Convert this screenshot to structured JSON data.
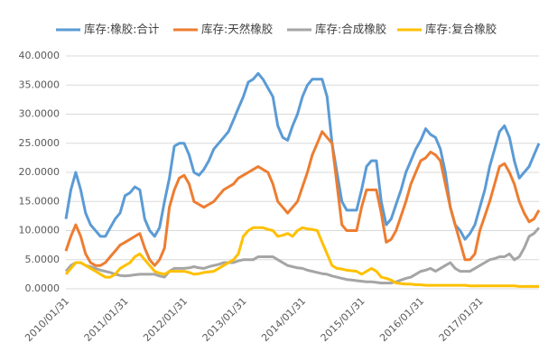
{
  "chart_data": {
    "type": "line",
    "categories": [
      "2010/01/31",
      null,
      null,
      null,
      null,
      null,
      null,
      null,
      null,
      null,
      null,
      null,
      "2011/01/31",
      null,
      null,
      null,
      null,
      null,
      null,
      null,
      null,
      null,
      null,
      null,
      "2012/01/31",
      null,
      null,
      null,
      null,
      null,
      null,
      null,
      null,
      null,
      null,
      null,
      "2013/01/31",
      null,
      null,
      null,
      null,
      null,
      null,
      null,
      null,
      null,
      null,
      null,
      "2014/01/31",
      null,
      null,
      null,
      null,
      null,
      null,
      null,
      null,
      null,
      null,
      null,
      "2015/01/31",
      null,
      null,
      null,
      null,
      null,
      null,
      null,
      null,
      null,
      null,
      null,
      "2016/01/31",
      null,
      null,
      null,
      null,
      null,
      null,
      null,
      null,
      null,
      null,
      null,
      "2017/01/31",
      null,
      null,
      null,
      null,
      null,
      null,
      null,
      null,
      null,
      null,
      null,
      null
    ],
    "series": [
      {
        "name": "库存:橡胶:合计",
        "color": "#5b9bd5",
        "values": [
          12,
          17,
          20,
          17,
          13,
          11,
          10,
          9,
          9,
          10.5,
          12,
          13,
          16,
          16.5,
          17.5,
          17,
          12,
          10,
          9,
          10.5,
          15,
          19,
          24.5,
          25,
          25,
          23,
          20,
          19.5,
          20.5,
          22,
          24,
          25,
          26,
          27,
          29,
          31,
          33,
          35.5,
          36,
          37,
          36,
          34.5,
          33,
          28,
          26,
          25.5,
          28,
          30,
          33,
          35,
          36,
          36,
          36,
          33,
          25,
          20,
          15,
          13.5,
          13.5,
          13.5,
          17,
          21,
          22,
          22,
          15,
          11,
          12,
          14.5,
          17,
          20,
          22,
          24,
          25.5,
          27.5,
          26.5,
          26,
          24,
          20,
          14,
          11,
          10,
          8.5,
          9.5,
          11,
          14,
          17,
          21,
          24,
          27,
          28,
          26,
          22,
          19,
          20,
          21,
          23,
          25
        ]
      },
      {
        "name": "库存:天然橡胶",
        "color": "#ed7d31",
        "values": [
          6.5,
          9,
          11,
          9,
          6,
          4.5,
          4,
          4,
          4.5,
          5.5,
          6.5,
          7.5,
          8,
          8.5,
          9,
          9.5,
          7,
          5,
          4,
          5,
          7,
          14,
          17,
          19,
          19.5,
          18,
          15,
          14.5,
          14,
          14.5,
          15,
          16,
          17,
          17.5,
          18,
          19,
          19.5,
          20,
          20.5,
          21,
          20.5,
          20,
          18,
          15,
          14,
          13,
          14,
          15,
          17.5,
          20,
          23,
          25,
          27,
          26,
          25,
          18,
          11,
          10,
          10,
          10,
          14,
          17,
          17,
          17,
          13,
          8,
          8.5,
          10,
          12.5,
          15,
          18,
          20,
          22,
          22.5,
          23.5,
          23,
          22,
          18,
          14,
          11,
          8,
          5,
          5,
          6,
          10,
          12.5,
          15,
          18,
          21,
          21.5,
          20,
          18,
          15,
          13,
          11.5,
          12,
          13.5
        ]
      },
      {
        "name": "库存:合成橡胶",
        "color": "#a5a5a5",
        "values": [
          3,
          4,
          4.5,
          4.5,
          4,
          3.8,
          3.5,
          3.2,
          3,
          2.8,
          2.5,
          2.3,
          2.2,
          2.3,
          2.4,
          2.5,
          2.5,
          2.5,
          2.5,
          2.2,
          2,
          3,
          3.5,
          3.5,
          3.5,
          3.6,
          3.8,
          3.6,
          3.5,
          3.8,
          4,
          4.2,
          4.5,
          4.5,
          4.5,
          4.8,
          5,
          5,
          5,
          5.5,
          5.5,
          5.5,
          5.5,
          5,
          4.5,
          4,
          3.8,
          3.6,
          3.5,
          3.2,
          3,
          2.8,
          2.6,
          2.5,
          2.2,
          2,
          1.8,
          1.6,
          1.5,
          1.4,
          1.3,
          1.2,
          1.2,
          1.1,
          1,
          1,
          1,
          1.2,
          1.5,
          1.8,
          2,
          2.5,
          3,
          3.2,
          3.5,
          3,
          3.5,
          4,
          4.5,
          3.5,
          3,
          3,
          3,
          3.5,
          4,
          4.5,
          5,
          5.2,
          5.5,
          5.5,
          6,
          5,
          5.5,
          7,
          9,
          9.5,
          10.5
        ]
      },
      {
        "name": "库存:复合橡胶",
        "color": "#ffc000",
        "values": [
          2.5,
          3.5,
          4.5,
          4.5,
          4,
          3.5,
          3,
          2.5,
          2,
          2,
          2.5,
          3.5,
          4,
          4.5,
          5.5,
          6,
          5,
          4,
          3,
          2.7,
          2.5,
          3,
          3,
          3,
          3,
          2.8,
          2.5,
          2.6,
          2.8,
          2.9,
          3,
          3.5,
          4,
          4.5,
          5,
          6,
          9,
          10,
          10.5,
          10.5,
          10.5,
          10.2,
          10,
          9,
          9.2,
          9.5,
          9,
          10,
          10.5,
          10.3,
          10.2,
          10,
          8,
          6,
          4,
          3.5,
          3.4,
          3.2,
          3.1,
          3,
          2.5,
          3,
          3.5,
          3,
          2,
          1.8,
          1.5,
          1,
          0.9,
          0.8,
          0.8,
          0.7,
          0.7,
          0.6,
          0.6,
          0.6,
          0.6,
          0.6,
          0.6,
          0.6,
          0.6,
          0.6,
          0.5,
          0.5,
          0.5,
          0.5,
          0.5,
          0.5,
          0.5,
          0.5,
          0.5,
          0.5,
          0.4,
          0.4,
          0.4,
          0.4,
          0.4
        ]
      }
    ],
    "ylim": [
      0,
      40
    ],
    "yticks": [
      {
        "value": 0,
        "label": "0.0000"
      },
      {
        "value": 5,
        "label": "5.0000"
      },
      {
        "value": 10,
        "label": "10.0000"
      },
      {
        "value": 15,
        "label": "15.0000"
      },
      {
        "value": 20,
        "label": "20.0000"
      },
      {
        "value": 25,
        "label": "25.0000"
      },
      {
        "value": 30,
        "label": "30.0000"
      },
      {
        "value": 35,
        "label": "35.0000"
      },
      {
        "value": 40,
        "label": "40.0000"
      }
    ],
    "grid": true,
    "legend": "top"
  }
}
